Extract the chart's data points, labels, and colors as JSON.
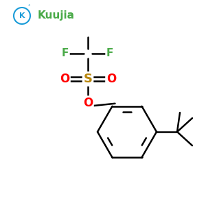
{
  "bg_color": "#ffffff",
  "logo_text": "Kuujia",
  "logo_k_color": "#1a9cd8",
  "logo_text_color": "#4aaa48",
  "atom_colors": {
    "F": "#4aaa48",
    "O": "#ff0000",
    "S": "#b8860b",
    "C": "#000000"
  },
  "line_color": "#000000",
  "line_width": 1.8,
  "font_size_atom": 12,
  "font_size_logo": 11
}
